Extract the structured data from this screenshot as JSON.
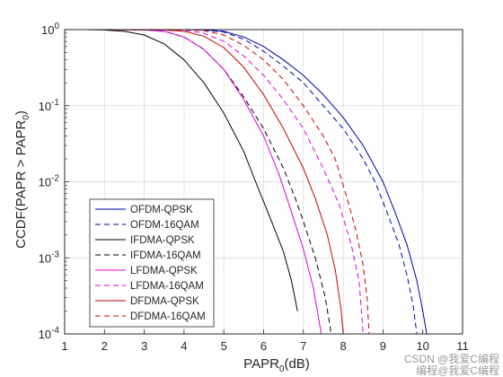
{
  "chart_data": {
    "type": "line",
    "title": "",
    "xlabel_main": "PAPR",
    "xlabel_sub": "0",
    "xlabel_tail": "(dB)",
    "ylabel_main": "CCDF(PAPR > PAPR",
    "ylabel_sub": "0",
    "ylabel_tail": ")",
    "xlim": [
      1,
      11
    ],
    "ylim": [
      0.0001,
      1
    ],
    "y_scale": "log",
    "grid": true,
    "minor_grid": true,
    "legend_position": "bottom-left",
    "x_ticks": [
      "1",
      "2",
      "3",
      "4",
      "5",
      "6",
      "7",
      "8",
      "9",
      "10",
      "11"
    ],
    "y_ticks": [
      {
        "base": "10",
        "exp": "0"
      },
      {
        "base": "10",
        "exp": "-1"
      },
      {
        "base": "10",
        "exp": "-2"
      },
      {
        "base": "10",
        "exp": "-3"
      },
      {
        "base": "10",
        "exp": "-4"
      }
    ],
    "series": [
      {
        "name": "OFDM-QPSK",
        "color": "#0000aa",
        "dash": "solid",
        "points": [
          [
            2,
            1
          ],
          [
            3,
            1
          ],
          [
            4,
            1
          ],
          [
            4.5,
            0.99
          ],
          [
            5,
            0.95
          ],
          [
            5.5,
            0.8
          ],
          [
            6,
            0.6
          ],
          [
            6.5,
            0.4
          ],
          [
            7,
            0.25
          ],
          [
            7.5,
            0.14
          ],
          [
            8,
            0.07
          ],
          [
            8.5,
            0.03
          ],
          [
            9,
            0.01
          ],
          [
            9.3,
            0.004
          ],
          [
            9.6,
            0.0015
          ],
          [
            9.85,
            0.0005
          ],
          [
            10,
            0.0002
          ],
          [
            10.1,
            0.0001
          ]
        ]
      },
      {
        "name": "OFDM-16QAM",
        "color": "#0000aa",
        "dash": "dashed",
        "points": [
          [
            2,
            1
          ],
          [
            3,
            1
          ],
          [
            4,
            1
          ],
          [
            4.5,
            0.99
          ],
          [
            5,
            0.93
          ],
          [
            5.5,
            0.75
          ],
          [
            6,
            0.52
          ],
          [
            6.5,
            0.33
          ],
          [
            7,
            0.2
          ],
          [
            7.5,
            0.1
          ],
          [
            8,
            0.05
          ],
          [
            8.5,
            0.02
          ],
          [
            8.8,
            0.01
          ],
          [
            9.1,
            0.004
          ],
          [
            9.4,
            0.0015
          ],
          [
            9.6,
            0.0006
          ],
          [
            9.75,
            0.00025
          ],
          [
            9.85,
            0.0001
          ]
        ]
      },
      {
        "name": "IFDMA-QPSK",
        "color": "#000000",
        "dash": "solid",
        "points": [
          [
            1.5,
            1
          ],
          [
            2,
            0.99
          ],
          [
            2.5,
            0.95
          ],
          [
            3,
            0.85
          ],
          [
            3.5,
            0.65
          ],
          [
            4,
            0.4
          ],
          [
            4.5,
            0.2
          ],
          [
            5,
            0.08
          ],
          [
            5.5,
            0.025
          ],
          [
            5.8,
            0.01
          ],
          [
            6.2,
            0.003
          ],
          [
            6.5,
            0.0012
          ],
          [
            6.7,
            0.0005
          ],
          [
            6.85,
            0.0002
          ]
        ]
      },
      {
        "name": "IFDMA-16QAM",
        "color": "#000000",
        "dash": "dashed",
        "points": [
          [
            2,
            1
          ],
          [
            3,
            0.99
          ],
          [
            3.5,
            0.95
          ],
          [
            4,
            0.8
          ],
          [
            4.5,
            0.55
          ],
          [
            5,
            0.3
          ],
          [
            5.5,
            0.13
          ],
          [
            6,
            0.05
          ],
          [
            6.5,
            0.015
          ],
          [
            6.8,
            0.006
          ],
          [
            7,
            0.003
          ],
          [
            7.3,
            0.001
          ],
          [
            7.55,
            0.0003
          ],
          [
            7.7,
            0.0001
          ]
        ]
      },
      {
        "name": "LFDMA-QPSK",
        "color": "#dd00dd",
        "dash": "solid",
        "points": [
          [
            2,
            1
          ],
          [
            3,
            0.99
          ],
          [
            3.5,
            0.95
          ],
          [
            4,
            0.8
          ],
          [
            4.5,
            0.55
          ],
          [
            5,
            0.3
          ],
          [
            5.5,
            0.12
          ],
          [
            6,
            0.04
          ],
          [
            6.4,
            0.012
          ],
          [
            6.7,
            0.004
          ],
          [
            7,
            0.0013
          ],
          [
            7.25,
            0.0004
          ],
          [
            7.45,
            0.0001
          ]
        ]
      },
      {
        "name": "LFDMA-16QAM",
        "color": "#dd00dd",
        "dash": "dashed",
        "points": [
          [
            2,
            1
          ],
          [
            3.5,
            1
          ],
          [
            4,
            0.98
          ],
          [
            4.5,
            0.9
          ],
          [
            5,
            0.7
          ],
          [
            5.5,
            0.45
          ],
          [
            6,
            0.25
          ],
          [
            6.5,
            0.12
          ],
          [
            7,
            0.05
          ],
          [
            7.5,
            0.015
          ],
          [
            7.9,
            0.005
          ],
          [
            8.2,
            0.0015
          ],
          [
            8.4,
            0.0005
          ],
          [
            8.5,
            0.0001
          ]
        ]
      },
      {
        "name": "DFDMA-QPSK",
        "color": "#cc0000",
        "dash": "solid",
        "points": [
          [
            2,
            1
          ],
          [
            3.5,
            0.99
          ],
          [
            4,
            0.95
          ],
          [
            4.5,
            0.82
          ],
          [
            5,
            0.58
          ],
          [
            5.5,
            0.32
          ],
          [
            6,
            0.14
          ],
          [
            6.5,
            0.05
          ],
          [
            7,
            0.015
          ],
          [
            7.3,
            0.006
          ],
          [
            7.6,
            0.002
          ],
          [
            7.8,
            0.0007
          ],
          [
            7.95,
            0.0002
          ],
          [
            8,
            0.0001
          ]
        ]
      },
      {
        "name": "DFDMA-16QAM",
        "color": "#cc0000",
        "dash": "dashed",
        "points": [
          [
            2,
            1
          ],
          [
            4,
            1
          ],
          [
            4.5,
            0.97
          ],
          [
            5,
            0.85
          ],
          [
            5.5,
            0.62
          ],
          [
            6,
            0.4
          ],
          [
            6.5,
            0.22
          ],
          [
            7,
            0.1
          ],
          [
            7.5,
            0.04
          ],
          [
            7.8,
            0.02
          ],
          [
            8.1,
            0.006
          ],
          [
            8.3,
            0.0025
          ],
          [
            8.5,
            0.0008
          ],
          [
            8.6,
            0.0003
          ],
          [
            8.65,
            0.0001
          ]
        ]
      }
    ]
  },
  "watermark": {
    "text": "CSDN @我爱C编程",
    "subtext": "编程@我爱C编程"
  }
}
